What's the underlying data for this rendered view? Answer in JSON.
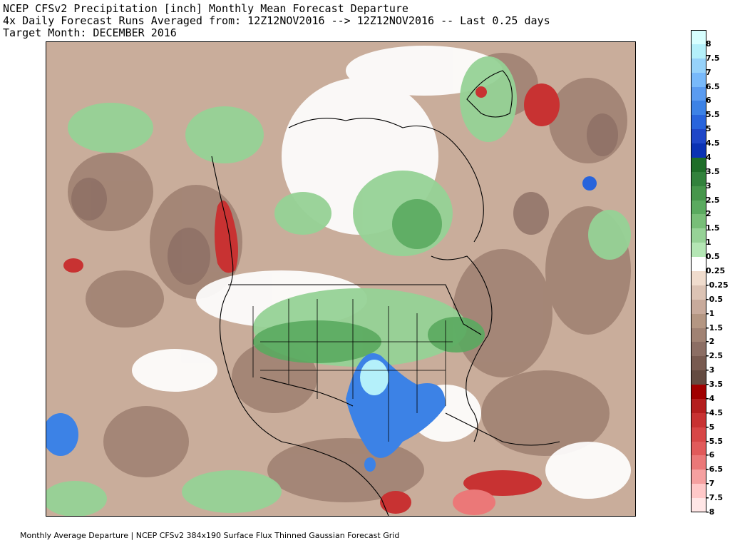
{
  "title": {
    "line1": "NCEP CFSv2 Precipitation [inch] Monthly Mean Forecast Departure",
    "line2": "4x Daily Forecast Runs Averaged from: 12Z12NOV2016 --> 12Z12NOV2016 -- Last 0.25 days",
    "line3": "Target Month: DECEMBER 2016"
  },
  "footer": "Monthly Average Departure | NCEP CFSv2 384x190 Surface Flux Thinned Gaussian Forecast Grid",
  "colorbar": {
    "labels": [
      "8",
      "7.5",
      "7",
      "6.5",
      "6",
      "5.5",
      "5",
      "4.5",
      "4",
      "3.5",
      "3",
      "2.5",
      "2",
      "1.5",
      "1",
      "0.5",
      "0.25",
      "-0.25",
      "-0.5",
      "-1",
      "-1.5",
      "-2",
      "-2.5",
      "-3",
      "-3.5",
      "-4",
      "-4.5",
      "-5",
      "-5.5",
      "-6",
      "-6.5",
      "-7",
      "-7.5",
      "-8"
    ],
    "colors": [
      "#d7ffff",
      "#b4f0fa",
      "#96d2fa",
      "#78b9fa",
      "#5a9bf0",
      "#3c82e6",
      "#2864dc",
      "#1e46c8",
      "#0a32b4",
      "#1e6e28",
      "#32823c",
      "#46964b",
      "#5aaa5f",
      "#78be78",
      "#96d296",
      "#b4e6b4",
      "#ffffff",
      "#f0dccd",
      "#dcc3b4",
      "#c8aa9b",
      "#b49682",
      "#a08273",
      "#8c6e64",
      "#785a50",
      "#644b41",
      "#a00000",
      "#b41e1e",
      "#c83232",
      "#d74646",
      "#e15a5a",
      "#eb7878",
      "#f5a0a0",
      "#ffc8c8",
      "#ffe6e6"
    ]
  },
  "map": {
    "legend_colors": {
      "ocean_base": "#c9ad9b",
      "dry_mid": "#b49682",
      "dry_dark": "#8c6e64",
      "neutral": "#ffffff",
      "wet_light": "#b4e6b4",
      "wet_mid": "#78be78",
      "wet_dark": "#46964b",
      "blue_wet": "#3c82e6",
      "blue_light": "#96d2fa",
      "red_dry": "#c83232",
      "red_light": "#eb7878"
    }
  }
}
